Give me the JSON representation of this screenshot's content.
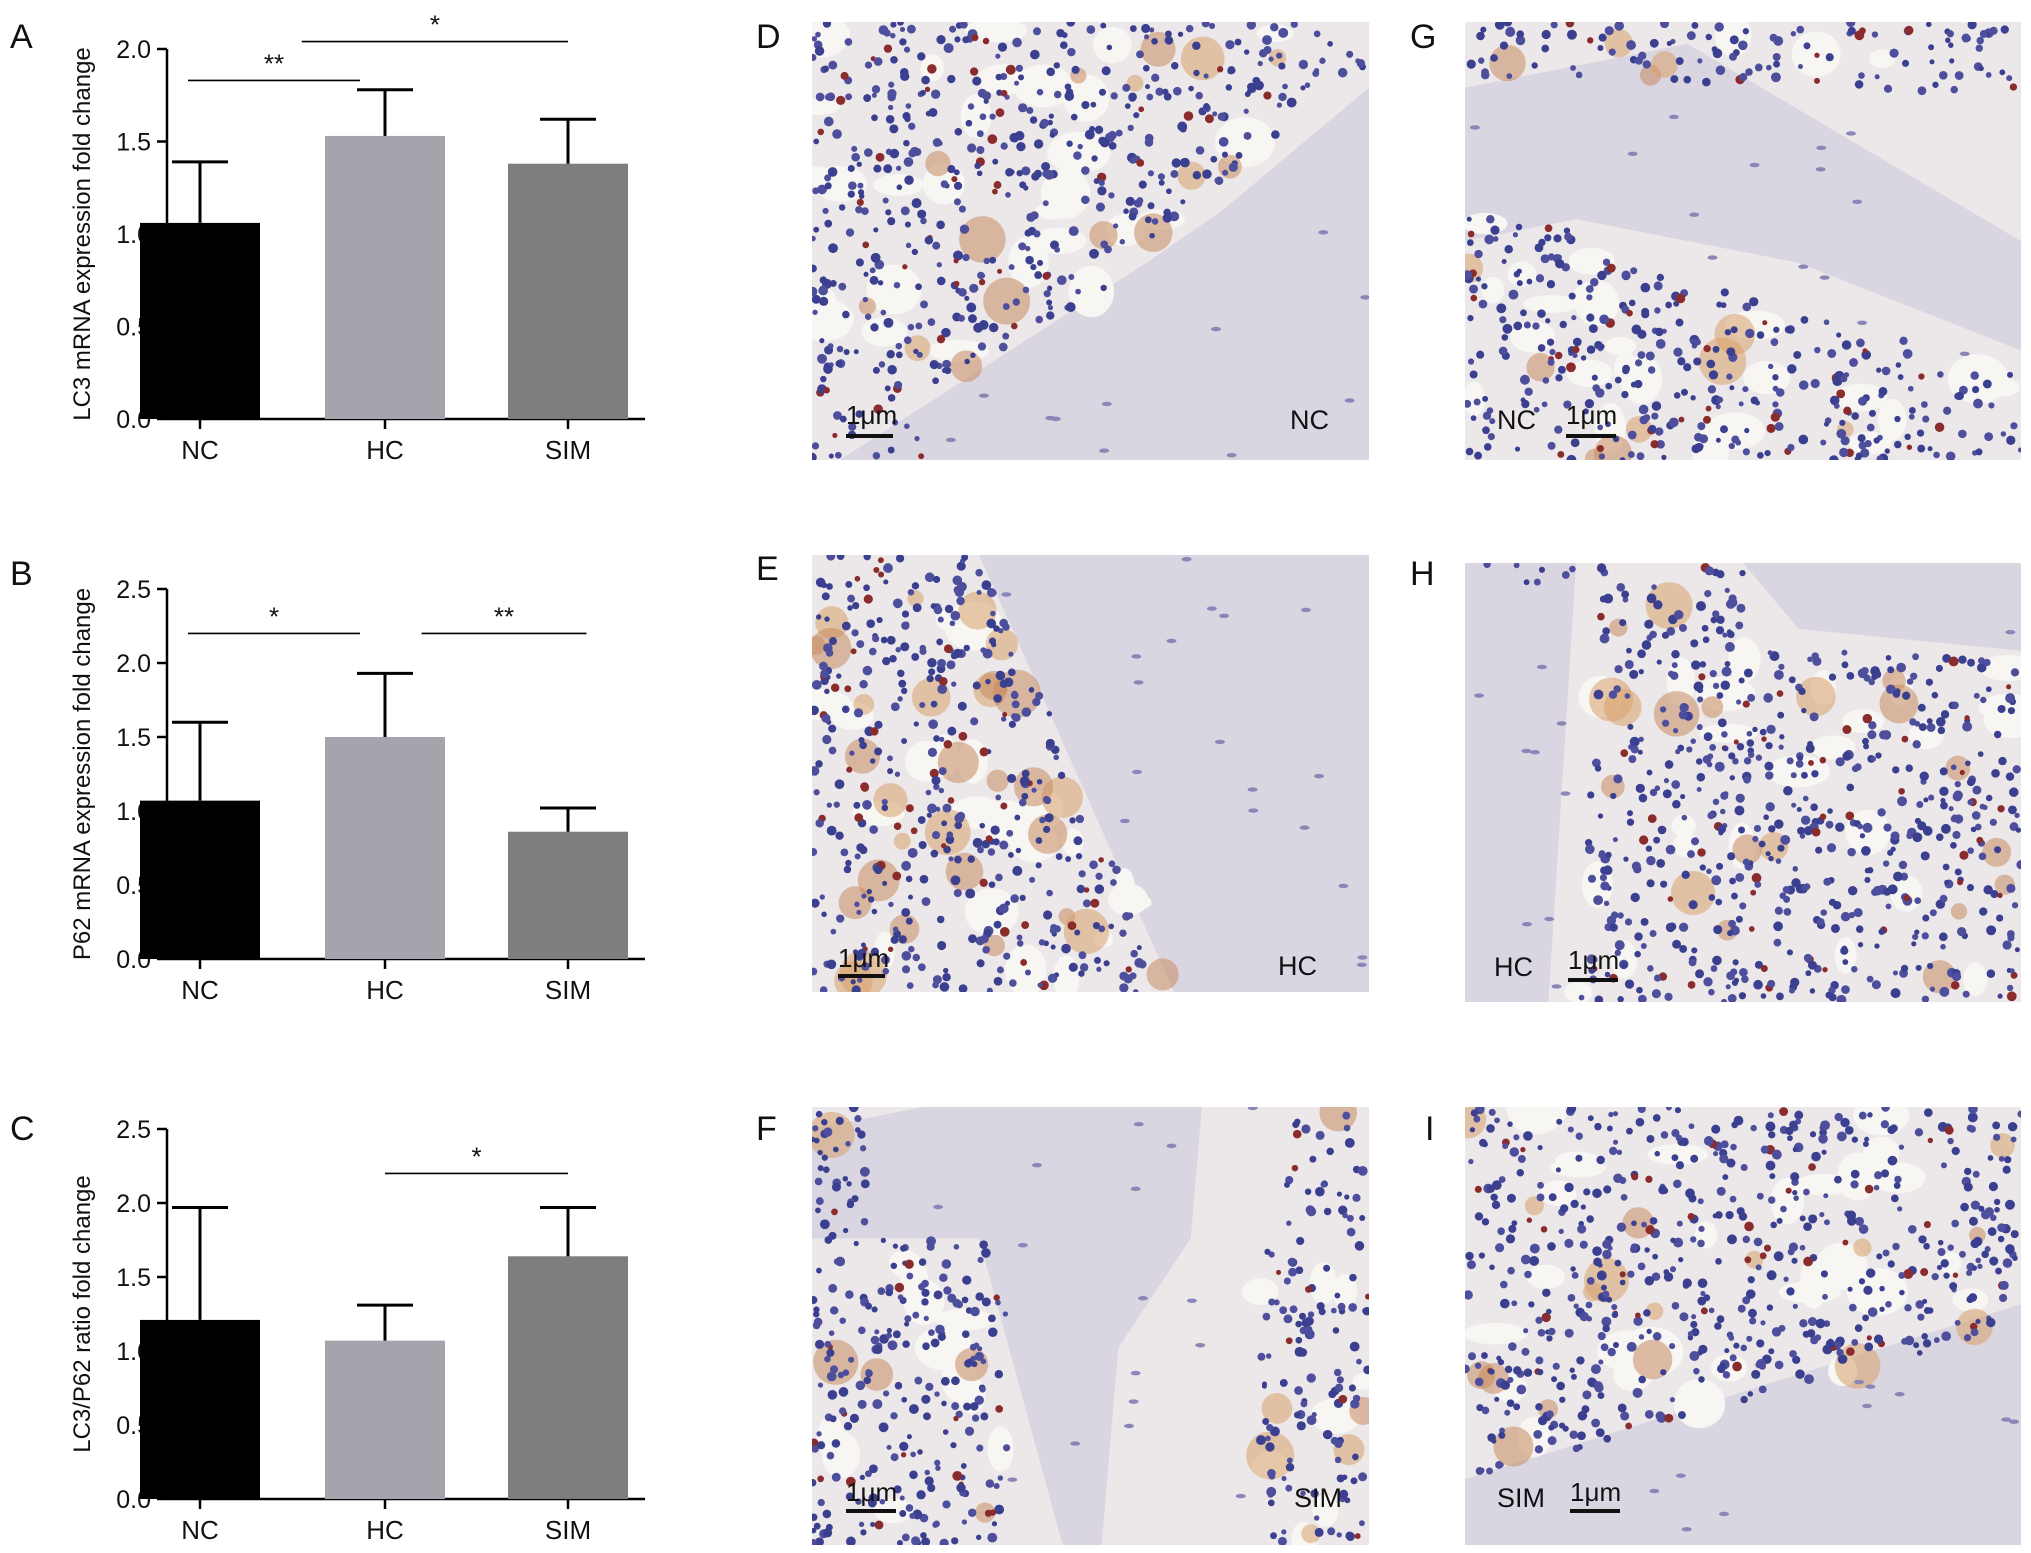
{
  "panels": {
    "A": "A",
    "B": "B",
    "C": "C",
    "D": "D",
    "E": "E",
    "F": "F",
    "G": "G",
    "H": "H",
    "I": "I"
  },
  "chart_data": [
    {
      "id": "A",
      "type": "bar",
      "categories": [
        "NC",
        "HC",
        "SIM"
      ],
      "values": [
        1.06,
        1.53,
        1.38
      ],
      "errors": [
        0.33,
        0.25,
        0.24
      ],
      "colors": [
        "#000000",
        "#a4a4ac",
        "#7e7e7e"
      ],
      "ylabel": "LC3 mRNA expression fold change",
      "ylim": [
        0,
        2.0
      ],
      "yticks": [
        "0.0",
        "0.5",
        "1.0",
        "1.5",
        "2.0"
      ],
      "ytick_values": [
        0,
        0.5,
        1.0,
        1.5,
        2.0
      ],
      "significance": [
        {
          "from": 0,
          "to": 1,
          "label": "**",
          "y": 1.83
        },
        {
          "from": 0.55,
          "to": 2,
          "label": "*",
          "y": 2.04
        }
      ]
    },
    {
      "id": "B",
      "type": "bar",
      "categories": [
        "NC",
        "HC",
        "SIM"
      ],
      "values": [
        1.07,
        1.5,
        0.86
      ],
      "errors": [
        0.53,
        0.43,
        0.16
      ],
      "colors": [
        "#000000",
        "#a4a4ac",
        "#7e7e7e"
      ],
      "ylabel": "P62 mRNA expression fold change",
      "ylim": [
        0,
        2.5
      ],
      "yticks": [
        "0.0",
        "0.5",
        "1.0",
        "1.5",
        "2.0",
        "2.5"
      ],
      "ytick_values": [
        0,
        0.5,
        1.0,
        1.5,
        2.0,
        2.5
      ],
      "significance": [
        {
          "from": 0,
          "to": 1,
          "label": "*",
          "y": 2.2
        },
        {
          "from": 1.2,
          "to": 2.1,
          "label": "**",
          "y": 2.2
        }
      ]
    },
    {
      "id": "C",
      "type": "bar",
      "categories": [
        "NC",
        "HC",
        "SIM"
      ],
      "values": [
        1.21,
        1.07,
        1.64
      ],
      "errors": [
        0.76,
        0.24,
        0.33
      ],
      "colors": [
        "#000000",
        "#a4a4ac",
        "#7e7e7e"
      ],
      "ylabel": "LC3/P62 ratio fold change",
      "ylim": [
        0,
        2.5
      ],
      "yticks": [
        "0.0",
        "0.5",
        "1.0",
        "1.5",
        "2.0",
        "2.5"
      ],
      "ytick_values": [
        0,
        0.5,
        1.0,
        1.5,
        2.0,
        2.5
      ],
      "significance": [
        {
          "from": 1,
          "to": 2,
          "label": "*",
          "y": 2.2
        }
      ]
    }
  ],
  "micrographs": [
    {
      "id": "D",
      "scalebar": "1μm",
      "group": "NC"
    },
    {
      "id": "E",
      "scalebar": "1μm",
      "group": "HC"
    },
    {
      "id": "F",
      "scalebar": "1μm",
      "group": "SIM"
    },
    {
      "id": "G",
      "scalebar": "1μm",
      "group": "NC"
    },
    {
      "id": "H",
      "scalebar": "1μm",
      "group": "HC"
    },
    {
      "id": "I",
      "scalebar": "1μm",
      "group": "SIM"
    }
  ]
}
